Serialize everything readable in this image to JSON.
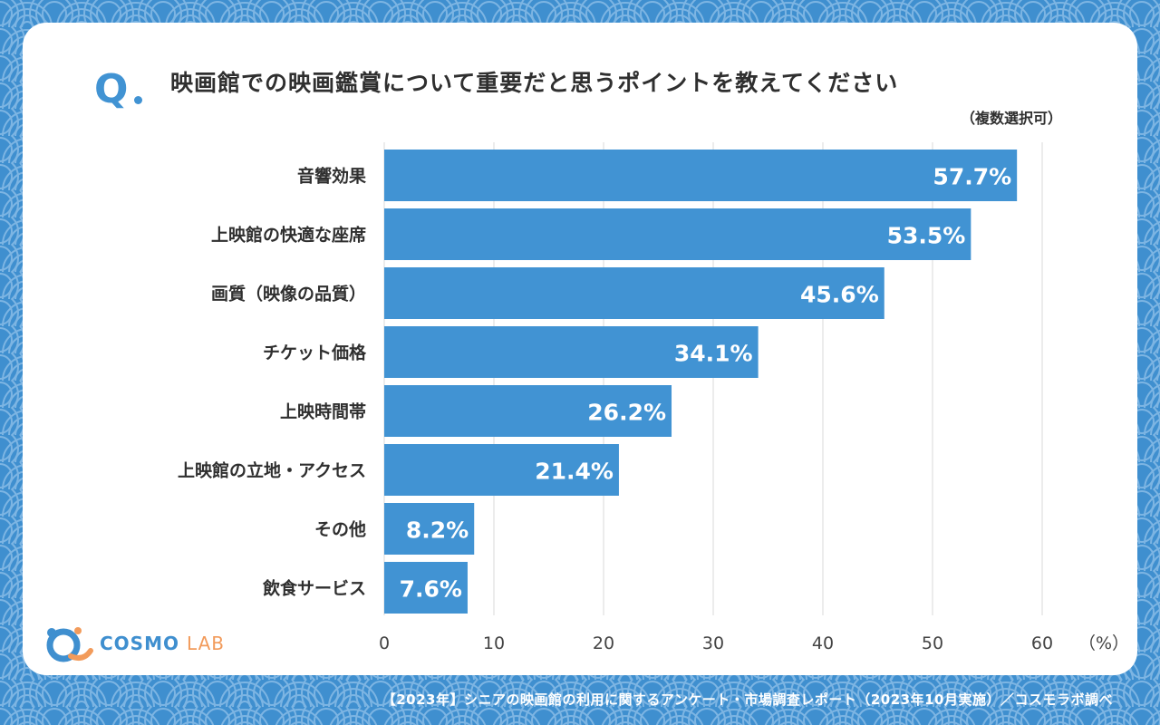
{
  "question_mark": "Q",
  "title": "映画館での映画鑑賞について重要だと思うポイントを教えてください",
  "subtitle": "（複数選択可）",
  "logo": {
    "part1": "COSMO",
    "part2": "LAB"
  },
  "footer": "【2023年】シニアの映画館の利用に関するアンケート・市場調査レポート（2023年10月実施）／コスモラボ調べ",
  "colors": {
    "bar": "#4193d3",
    "background": "#3f8fcf",
    "accent_orange": "#f29b5b"
  },
  "chart_data": {
    "type": "bar",
    "orientation": "horizontal",
    "categories": [
      "音響効果",
      "上映館の快適な座席",
      "画質（映像の品質）",
      "チケット価格",
      "上映時間帯",
      "上映館の立地・アクセス",
      "その他",
      "飲食サービス"
    ],
    "values": [
      57.7,
      53.5,
      45.6,
      34.1,
      26.2,
      21.4,
      8.2,
      7.6
    ],
    "value_labels": [
      "57.7%",
      "53.5%",
      "45.6%",
      "34.1%",
      "26.2%",
      "21.4%",
      "8.2%",
      "7.6%"
    ],
    "xlim": [
      0,
      60
    ],
    "xticks": [
      "0",
      "10",
      "20",
      "30",
      "40",
      "50",
      "60"
    ],
    "xunit": "（%）",
    "grid": true
  }
}
